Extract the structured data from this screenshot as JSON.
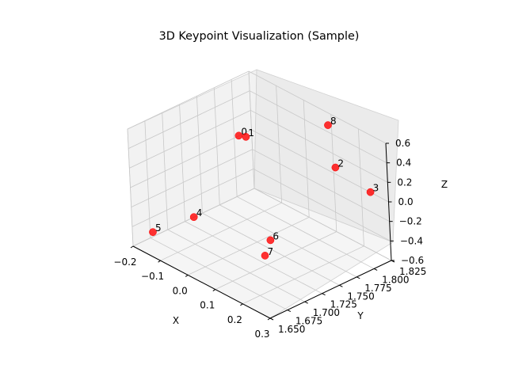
{
  "chart_data": {
    "type": "scatter",
    "projection": "3d",
    "title": "3D Keypoint Visualization (Sample)",
    "xlabel": "X",
    "ylabel": "Y",
    "zlabel": "Z",
    "xlim": [
      -0.2,
      0.3
    ],
    "ylim": [
      1.65,
      1.825
    ],
    "zlim": [
      -0.6,
      0.7
    ],
    "x_ticks": [
      "−0.2",
      "−0.1",
      "0.0",
      "0.1",
      "0.2",
      "0.3"
    ],
    "y_ticks": [
      "1.650",
      "1.675",
      "1.700",
      "1.725",
      "1.750",
      "1.775",
      "1.800",
      "1.825"
    ],
    "z_ticks": [
      "−0.6",
      "−0.4",
      "−0.2",
      "0.0",
      "0.2",
      "0.4",
      "0.6"
    ],
    "grid": true,
    "marker_color": "#ff0000",
    "points": [
      {
        "label": "0",
        "x": -0.05,
        "y": 1.75,
        "z": 0.5
      },
      {
        "label": "1",
        "x": -0.05,
        "y": 1.76,
        "z": 0.45
      },
      {
        "label": "2",
        "x": 0.2,
        "y": 1.79,
        "z": 0.4
      },
      {
        "label": "3",
        "x": 0.3,
        "y": 1.8,
        "z": 0.25
      },
      {
        "label": "4",
        "x": -0.1,
        "y": 1.7,
        "z": -0.3
      },
      {
        "label": "5",
        "x": -0.15,
        "y": 1.66,
        "z": -0.4
      },
      {
        "label": "6",
        "x": 0.05,
        "y": 1.75,
        "z": -0.5
      },
      {
        "label": "7",
        "x": 0.08,
        "y": 1.73,
        "z": -0.55
      },
      {
        "label": "8",
        "x": 0.1,
        "y": 1.82,
        "z": 0.6
      }
    ]
  }
}
